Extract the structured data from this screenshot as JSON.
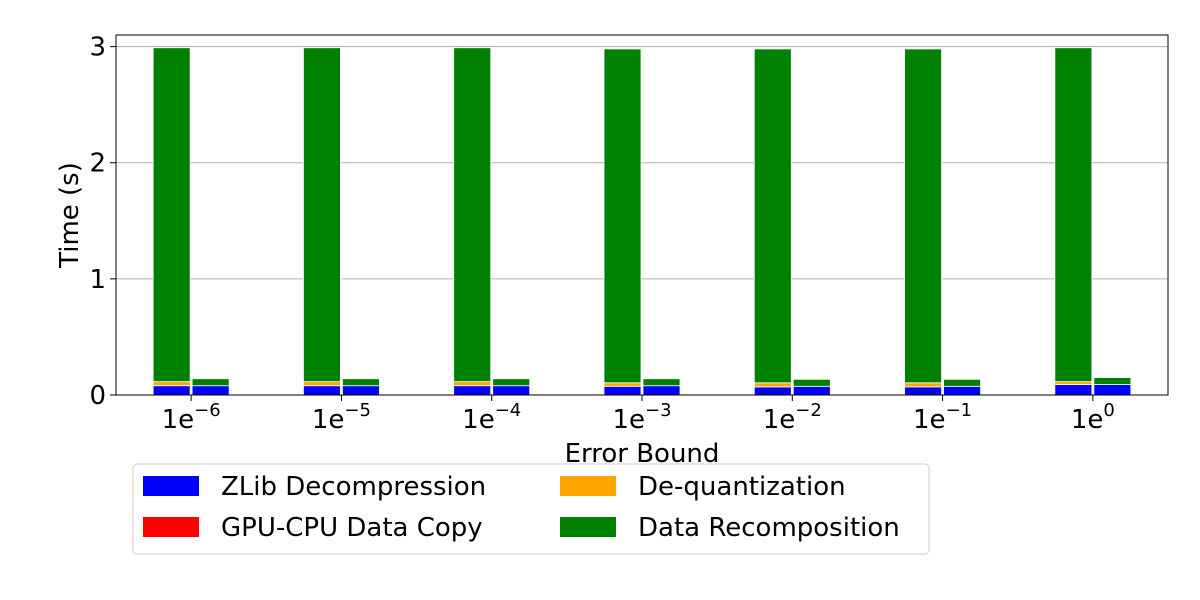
{
  "chart_data": {
    "type": "bar",
    "stacked": true,
    "grouped": true,
    "xlabel": "Error Bound",
    "ylabel": "Time (s)",
    "ylim": [
      0,
      3.1
    ],
    "yticks": [
      "0",
      "1",
      "2",
      "3"
    ],
    "grid": "y",
    "legend_position": "bottom",
    "categories": [
      {
        "base": "1e",
        "exp": "−6"
      },
      {
        "base": "1e",
        "exp": "−5"
      },
      {
        "base": "1e",
        "exp": "−4"
      },
      {
        "base": "1e",
        "exp": "−3"
      },
      {
        "base": "1e",
        "exp": "−2"
      },
      {
        "base": "1e",
        "exp": "−1"
      },
      {
        "base": "1e",
        "exp": "0"
      }
    ],
    "series": [
      {
        "name": "ZLib Decompression",
        "color": "#0000ff"
      },
      {
        "name": "GPU-CPU Data Copy",
        "color": "#ff0000"
      },
      {
        "name": "De-quantization",
        "color": "#ffa500"
      },
      {
        "name": "Data Recomposition",
        "color": "#008000"
      }
    ],
    "bar_groups": [
      {
        "bars": [
          [
            0.08,
            0.0,
            0.035,
            2.875
          ],
          [
            0.08,
            0.0,
            0.0,
            0.06
          ]
        ]
      },
      {
        "bars": [
          [
            0.08,
            0.0,
            0.035,
            2.875
          ],
          [
            0.08,
            0.0,
            0.0,
            0.06
          ]
        ]
      },
      {
        "bars": [
          [
            0.08,
            0.0,
            0.035,
            2.875
          ],
          [
            0.08,
            0.0,
            0.0,
            0.06
          ]
        ]
      },
      {
        "bars": [
          [
            0.075,
            0.0,
            0.03,
            2.875
          ],
          [
            0.08,
            0.0,
            0.0,
            0.06
          ]
        ]
      },
      {
        "bars": [
          [
            0.07,
            0.0,
            0.035,
            2.875
          ],
          [
            0.075,
            0.0,
            0.0,
            0.06
          ]
        ]
      },
      {
        "bars": [
          [
            0.07,
            0.0,
            0.035,
            2.875
          ],
          [
            0.075,
            0.0,
            0.0,
            0.06
          ]
        ]
      },
      {
        "bars": [
          [
            0.09,
            0.0,
            0.025,
            2.875
          ],
          [
            0.09,
            0.0,
            0.0,
            0.06
          ]
        ]
      }
    ]
  }
}
